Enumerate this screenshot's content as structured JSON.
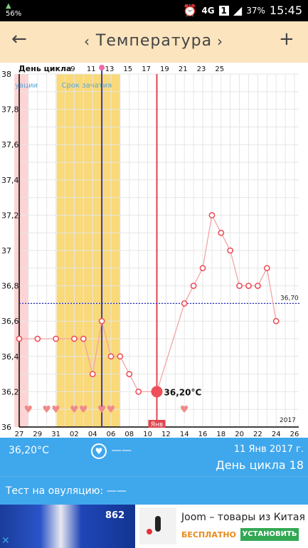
{
  "status_bar": {
    "signal_label": "56%",
    "network": "4G",
    "sim": "1",
    "battery": "37%",
    "time": "15:45"
  },
  "header": {
    "title": "Температура",
    "back_icon": "arrow-left-icon",
    "add_icon": "plus-icon"
  },
  "chart_data": {
    "type": "line",
    "cycle_day_label": "День цикла",
    "cycle_day_ticks": [
      "9",
      "11",
      "13",
      "15",
      "17",
      "19",
      "21",
      "23",
      "25"
    ],
    "date_ticks": [
      "27",
      "29",
      "31",
      "02",
      "04",
      "06",
      "08",
      "10",
      "12",
      "14",
      "16",
      "18",
      "20",
      "22",
      "24",
      "26"
    ],
    "y_ticks": [
      "36",
      "36,2",
      "36,4",
      "36,6",
      "36,8",
      "37",
      "37,2",
      "37,4",
      "37,6",
      "37,8",
      "38"
    ],
    "ylim": [
      36,
      38
    ],
    "x_start_label": "27",
    "period_label": "уации",
    "fertile_label": "Срок зачатия",
    "coverline_label": "36,70",
    "coverline_value": 36.7,
    "today_label": "Янв",
    "year_label": "2017",
    "selected_label": "36,20°C",
    "series": [
      {
        "values": [
          {
            "x": 0,
            "y": 36.5
          },
          {
            "x": 2,
            "y": 36.5
          },
          {
            "x": 4,
            "y": 36.5
          },
          {
            "x": 6,
            "y": 36.5
          },
          {
            "x": 7,
            "y": 36.5
          },
          {
            "x": 8,
            "y": 36.3
          },
          {
            "x": 9,
            "y": 36.6
          },
          {
            "x": 10,
            "y": 36.4
          },
          {
            "x": 11,
            "y": 36.4
          },
          {
            "x": 12,
            "y": 36.3
          },
          {
            "x": 13,
            "y": 36.2
          },
          {
            "x": 15,
            "y": 36.2
          },
          {
            "x": 18,
            "y": 36.7
          },
          {
            "x": 19,
            "y": 36.8
          },
          {
            "x": 20,
            "y": 36.9
          },
          {
            "x": 21,
            "y": 37.2
          },
          {
            "x": 22,
            "y": 37.1
          },
          {
            "x": 23,
            "y": 37.0
          },
          {
            "x": 24,
            "y": 36.8
          },
          {
            "x": 25,
            "y": 36.8
          },
          {
            "x": 26,
            "y": 36.8
          },
          {
            "x": 27,
            "y": 36.9
          },
          {
            "x": 28,
            "y": 36.6
          }
        ]
      }
    ],
    "selected_x": 15,
    "selected_y": 36.2,
    "ovulation_x": 9,
    "today_x": 15,
    "period_range": [
      -1,
      1
    ],
    "fertile_range": [
      4,
      11
    ],
    "hearts_x": [
      1,
      3,
      4,
      6,
      7,
      9,
      10,
      18
    ],
    "colors": {
      "line": "#f4a4a4",
      "marker": "#ee4f5a",
      "period": "#fdd4d4",
      "fertile": "#f9d979",
      "ovulation_line": "#3a3ab8",
      "today_line": "#e0454e",
      "coverline": "#2a2ac0"
    }
  },
  "info_panel": {
    "temperature": "36,20°C",
    "test_value": "——",
    "date": "11 Янв 2017 г.",
    "cycle_day": "День цикла 18"
  },
  "ovulation_test": {
    "label": "Тест на овуляцию: ——"
  },
  "ad": {
    "image_number": "862",
    "title": "Joom – товары из Китая",
    "free_label": "БЕСПЛАТНО",
    "install_label": "УСТАНОВИТЬ"
  }
}
